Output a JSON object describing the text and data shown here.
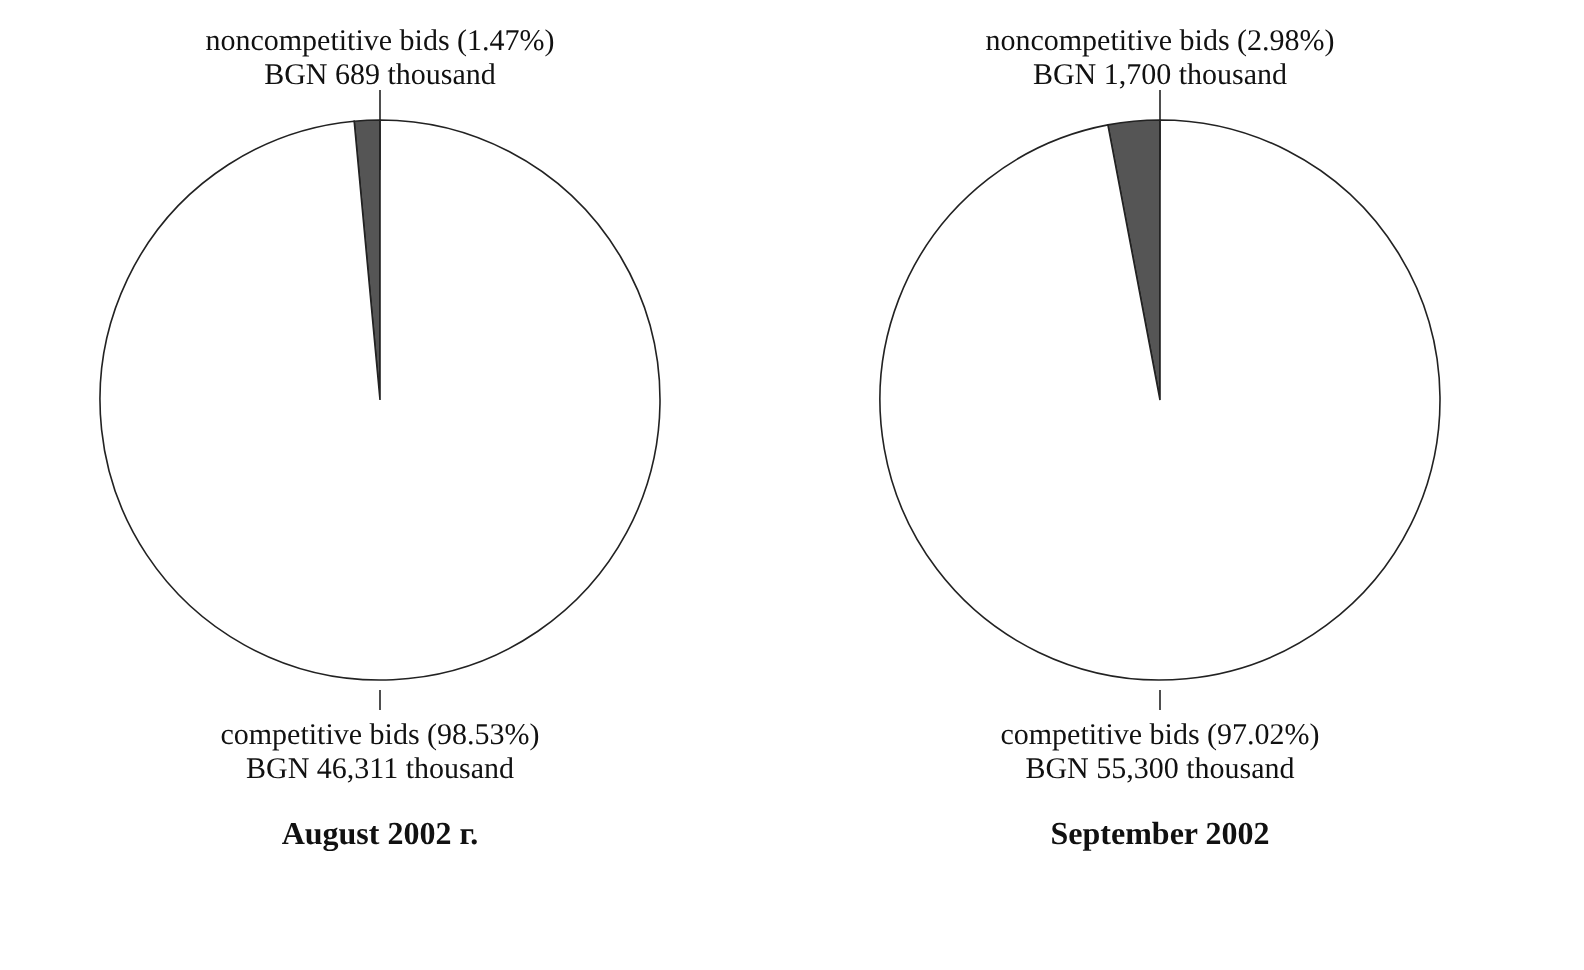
{
  "chart_data": [
    {
      "type": "pie",
      "title": "August 2002 г.",
      "categories": [
        "noncompetitive bids (1.47%)",
        "competitive bids (98.53%)"
      ],
      "values": [
        1.47,
        98.53
      ],
      "colors": [
        "#555555",
        "#ffffff"
      ],
      "value_labels": [
        "BGN 689 thousand",
        "BGN 46,311 thousand"
      ]
    },
    {
      "type": "pie",
      "title": "September 2002",
      "categories": [
        "noncompetitive bids (2.98%)",
        "competitive bids (97.02%)"
      ],
      "values": [
        2.98,
        97.02
      ],
      "colors": [
        "#555555",
        "#ffffff"
      ],
      "value_labels": [
        "BGN 1,700 thousand",
        "BGN 55,300 thousand"
      ]
    }
  ]
}
